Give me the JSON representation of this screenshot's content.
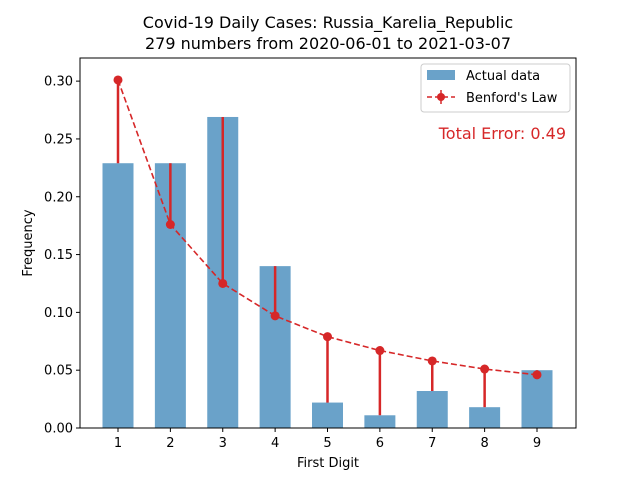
{
  "chart_data": {
    "type": "bar",
    "title": "Covid-19 Daily Cases: Russia_Karelia_Republic",
    "subtitle": "279 numbers from 2020-06-01 to 2021-03-07",
    "xlabel": "First Digit",
    "ylabel": "Frequency",
    "categories": [
      "1",
      "2",
      "3",
      "4",
      "5",
      "6",
      "7",
      "8",
      "9"
    ],
    "ylim": [
      0,
      0.32
    ],
    "yticks": [
      "0.00",
      "0.05",
      "0.10",
      "0.15",
      "0.20",
      "0.25",
      "0.30"
    ],
    "series": [
      {
        "name": "Actual data",
        "kind": "bar",
        "color": "#6aa2c9",
        "values": [
          0.229,
          0.229,
          0.269,
          0.14,
          0.022,
          0.011,
          0.032,
          0.018,
          0.05
        ]
      },
      {
        "name": "Benford's Law",
        "kind": "line",
        "style": "dashed",
        "marker": "circle",
        "color": "#d62728",
        "values": [
          0.301,
          0.176,
          0.125,
          0.097,
          0.079,
          0.067,
          0.058,
          0.051,
          0.046
        ]
      }
    ],
    "annotation": {
      "text": "Total Error: 0.49",
      "color": "#d62728"
    },
    "legend_position": "top-right",
    "grid": false
  }
}
